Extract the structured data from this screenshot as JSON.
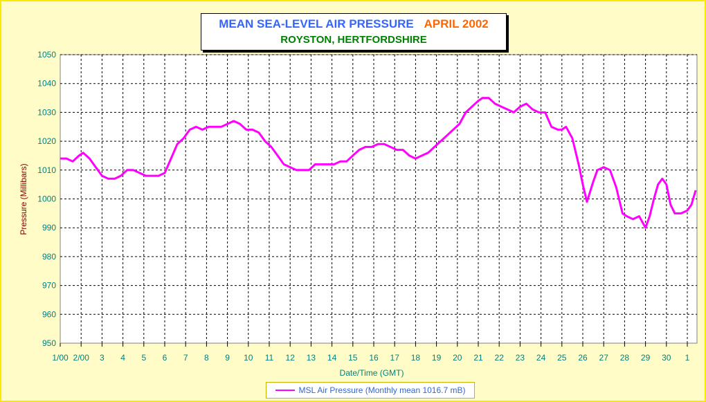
{
  "chart_data": {
    "type": "line",
    "title": "MEAN SEA-LEVEL AIR PRESSURE",
    "title_month": "APRIL 2002",
    "subtitle": "ROYSTON, HERTFORDSHIRE",
    "xlabel": "Date/Time (GMT)",
    "ylabel": "Pressure (Millibars)",
    "ylim": [
      950,
      1050
    ],
    "yticks": [
      950,
      960,
      970,
      980,
      990,
      1000,
      1010,
      1020,
      1030,
      1040,
      1050
    ],
    "xlim": [
      1,
      31.4
    ],
    "xtick_labels": [
      "1/00",
      "2/00",
      "3",
      "4",
      "5",
      "6",
      "7",
      "8",
      "9",
      "10",
      "11",
      "12",
      "13",
      "14",
      "15",
      "16",
      "17",
      "18",
      "19",
      "20",
      "21",
      "22",
      "23",
      "24",
      "25",
      "26",
      "27",
      "28",
      "29",
      "30",
      "1"
    ],
    "grid": true,
    "colors": {
      "series": "#ff00ff",
      "axis_text": "#008080",
      "ylabel": "#800000",
      "grid": "#000000"
    },
    "legend": "bottom-center",
    "series": [
      {
        "name": "MSL Air Pressure (Monthly mean 1016.7 mB)",
        "x": [
          1.0,
          1.3,
          1.6,
          1.9,
          2.1,
          2.4,
          2.7,
          3.0,
          3.3,
          3.6,
          3.9,
          4.2,
          4.5,
          4.8,
          5.1,
          5.4,
          5.7,
          6.0,
          6.3,
          6.6,
          6.9,
          7.2,
          7.5,
          7.8,
          8.1,
          8.4,
          8.7,
          9.0,
          9.3,
          9.6,
          9.9,
          10.2,
          10.5,
          10.8,
          11.1,
          11.4,
          11.7,
          12.0,
          12.3,
          12.6,
          12.9,
          13.2,
          13.5,
          13.8,
          14.1,
          14.4,
          14.7,
          15.0,
          15.3,
          15.6,
          15.9,
          16.2,
          16.5,
          16.8,
          17.1,
          17.4,
          17.7,
          18.0,
          18.3,
          18.6,
          18.9,
          19.2,
          19.5,
          19.8,
          20.1,
          20.4,
          20.7,
          21.0,
          21.2,
          21.5,
          21.8,
          22.1,
          22.4,
          22.7,
          23.0,
          23.3,
          23.6,
          23.9,
          24.2,
          24.5,
          24.8,
          25.0,
          25.2,
          25.5,
          25.8,
          26.0,
          26.2,
          26.5,
          26.7,
          27.0,
          27.3,
          27.6,
          27.9,
          28.1,
          28.4,
          28.7,
          29.0,
          29.2,
          29.4,
          29.6,
          29.8,
          30.0,
          30.2,
          30.4,
          30.7,
          31.0,
          31.2,
          31.4
        ],
        "values": [
          1014,
          1014,
          1013,
          1015,
          1016,
          1014,
          1011,
          1008,
          1007,
          1007,
          1008,
          1010,
          1010,
          1009,
          1008,
          1008,
          1008,
          1009,
          1014,
          1019,
          1021,
          1024,
          1025,
          1024,
          1025,
          1025,
          1025,
          1026,
          1027,
          1026,
          1024,
          1024,
          1023,
          1020,
          1018,
          1015,
          1012,
          1011,
          1010,
          1010,
          1010,
          1012,
          1012,
          1012,
          1012,
          1013,
          1013,
          1015,
          1017,
          1018,
          1018,
          1019,
          1019,
          1018,
          1017,
          1017,
          1015,
          1014,
          1015,
          1016,
          1018,
          1020,
          1022,
          1024,
          1026,
          1030,
          1032,
          1034,
          1035,
          1035,
          1033,
          1032,
          1031,
          1030,
          1032,
          1033,
          1031,
          1030,
          1030,
          1025,
          1024,
          1024,
          1025,
          1021,
          1012,
          1005,
          999,
          1006,
          1010,
          1011,
          1010,
          1004,
          995,
          994,
          993,
          994,
          990,
          994,
          1000,
          1005,
          1007,
          1005,
          998,
          995,
          995,
          996,
          998,
          1003
        ]
      }
    ]
  },
  "legend_label": "MSL Air Pressure (Monthly mean 1016.7 mB)"
}
